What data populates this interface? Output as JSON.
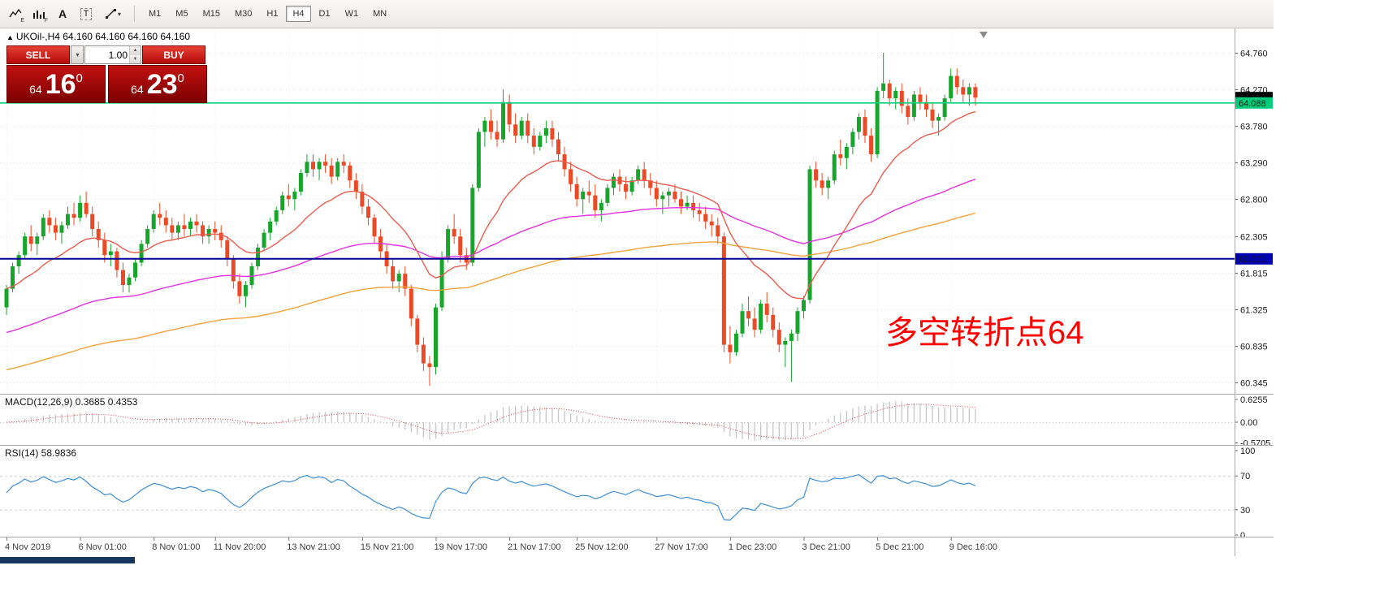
{
  "toolbar": {
    "tools": [
      {
        "name": "chart-style",
        "badge": "E"
      },
      {
        "name": "indicator-bars",
        "badge": "F"
      },
      {
        "name": "arrow-text",
        "label": "A"
      },
      {
        "name": "text-box",
        "label": "T"
      },
      {
        "name": "drawing-tools"
      }
    ],
    "timeframes": [
      {
        "label": "M1",
        "active": false
      },
      {
        "label": "M5",
        "active": false
      },
      {
        "label": "M15",
        "active": false
      },
      {
        "label": "M30",
        "active": false
      },
      {
        "label": "H1",
        "active": false
      },
      {
        "label": "H4",
        "active": true
      },
      {
        "label": "D1",
        "active": false
      },
      {
        "label": "W1",
        "active": false
      },
      {
        "label": "MN",
        "active": false
      }
    ]
  },
  "chart": {
    "symbol_label": "UKOil-,H4 64.160 64.160 64.160 64.160",
    "collapse_icon": "▲",
    "price_axis": [
      "64.760",
      "64.270",
      "63.780",
      "63.290",
      "62.800",
      "62.305",
      "61.815",
      "61.325",
      "60.835",
      "60.345"
    ],
    "price_lines": [
      {
        "label": "64.160",
        "price": 64.16,
        "badge_bg": "#000000",
        "badge_fg": "#FFFFFF"
      },
      {
        "label": "64.088",
        "price": 64.088,
        "badge_bg": "#00CC7A",
        "badge_fg": "#00331A",
        "line_color": "#00D07C",
        "line_width": 1.6
      },
      {
        "label": "62.000",
        "price": 62.0,
        "badge_bg": "#0000B0",
        "badge_fg": "#FFFFFF",
        "line_color": "#000096",
        "line_width": 2
      }
    ],
    "annotation": {
      "text": "多空转折点64",
      "color": "#FF0000"
    },
    "trade_panel": {
      "sell": "SELL",
      "buy": "BUY",
      "volume": "1.00",
      "bid": {
        "prefix": "64",
        "big": "16",
        "sup": "0"
      },
      "ask": {
        "prefix": "64",
        "big": "23",
        "sup": "0"
      }
    }
  },
  "macd_panel": {
    "label": "MACD(12,26,9) 0.3685 0.4353",
    "axis": [
      {
        "text": "0.6255",
        "value": 0.6255
      },
      {
        "text": "0.00",
        "value": 0
      },
      {
        "text": "-0.5705",
        "value": -0.5705
      }
    ]
  },
  "rsi_panel": {
    "label": "RSI(14) 58.9836",
    "axis": [
      {
        "text": "100",
        "value": 100
      },
      {
        "text": "70",
        "value": 70
      },
      {
        "text": "30",
        "value": 30
      },
      {
        "text": "0",
        "value": 0
      }
    ],
    "levels": [
      70,
      30
    ]
  },
  "chart_data": {
    "type": "candlestick",
    "symbol": "UKOil-",
    "timeframe": "H4",
    "ylim": [
      60.18,
      64.98
    ],
    "grid": true,
    "colors": {
      "up": "#18A52C",
      "down": "#EC4A26",
      "ma_fast": "#E95D4E",
      "ma_mid": "#E331E3",
      "ma_slow": "#F2A33C",
      "rsi": "#3E8FD6",
      "macd_hist": "#C6C6C6",
      "macd_signal": "#D94040"
    },
    "x_labels": [
      {
        "text": "4 Nov 2019",
        "i": 0
      },
      {
        "text": "6 Nov 01:00",
        "i": 12
      },
      {
        "text": "8 Nov 01:00",
        "i": 24
      },
      {
        "text": "11 Nov 20:00",
        "i": 34
      },
      {
        "text": "13 Nov 21:00",
        "i": 46
      },
      {
        "text": "15 Nov 21:00",
        "i": 58
      },
      {
        "text": "19 Nov 17:00",
        "i": 70
      },
      {
        "text": "21 Nov 17:00",
        "i": 82
      },
      {
        "text": "25 Nov 12:00",
        "i": 93
      },
      {
        "text": "27 Nov 17:00",
        "i": 106
      },
      {
        "text": "1 Dec 23:00",
        "i": 118
      },
      {
        "text": "3 Dec 21:00",
        "i": 130
      },
      {
        "text": "5 Dec 21:00",
        "i": 142
      },
      {
        "text": "9 Dec 16:00",
        "i": 154
      }
    ],
    "indicators": {
      "macd": {
        "fast": 12,
        "slow": 26,
        "signal": 9,
        "value": 0.3685,
        "signal_value": 0.4353
      },
      "rsi": {
        "period": 14,
        "value": 58.9836
      }
    },
    "ohlc": [
      [
        61.35,
        61.65,
        61.25,
        61.6
      ],
      [
        61.6,
        61.95,
        61.55,
        61.9
      ],
      [
        61.9,
        62.1,
        61.8,
        62.05
      ],
      [
        62.05,
        62.35,
        62.0,
        62.3
      ],
      [
        62.3,
        62.45,
        62.1,
        62.2
      ],
      [
        62.2,
        62.35,
        62.05,
        62.3
      ],
      [
        62.3,
        62.6,
        62.25,
        62.55
      ],
      [
        62.55,
        62.65,
        62.35,
        62.45
      ],
      [
        62.45,
        62.55,
        62.25,
        62.35
      ],
      [
        62.35,
        62.5,
        62.2,
        62.45
      ],
      [
        62.45,
        62.7,
        62.4,
        62.6
      ],
      [
        62.6,
        62.75,
        62.45,
        62.55
      ],
      [
        62.55,
        62.85,
        62.5,
        62.75
      ],
      [
        62.75,
        62.9,
        62.55,
        62.6
      ],
      [
        62.6,
        62.7,
        62.3,
        62.4
      ],
      [
        62.4,
        62.5,
        62.15,
        62.25
      ],
      [
        62.25,
        62.35,
        61.95,
        62.05
      ],
      [
        62.05,
        62.2,
        61.9,
        62.1
      ],
      [
        62.1,
        62.15,
        61.75,
        61.85
      ],
      [
        61.85,
        61.95,
        61.55,
        61.65
      ],
      [
        61.65,
        61.8,
        61.55,
        61.75
      ],
      [
        61.75,
        62.0,
        61.7,
        61.95
      ],
      [
        61.95,
        62.25,
        61.9,
        62.2
      ],
      [
        62.2,
        62.45,
        62.15,
        62.4
      ],
      [
        62.4,
        62.65,
        62.35,
        62.6
      ],
      [
        62.6,
        62.75,
        62.45,
        62.55
      ],
      [
        62.55,
        62.65,
        62.35,
        62.45
      ],
      [
        62.45,
        62.55,
        62.25,
        62.35
      ],
      [
        62.35,
        62.5,
        62.25,
        62.45
      ],
      [
        62.45,
        62.6,
        62.3,
        62.4
      ],
      [
        62.4,
        62.55,
        62.3,
        62.5
      ],
      [
        62.5,
        62.6,
        62.35,
        62.45
      ],
      [
        62.45,
        62.5,
        62.2,
        62.3
      ],
      [
        62.3,
        62.45,
        62.2,
        62.4
      ],
      [
        62.4,
        62.5,
        62.25,
        62.35
      ],
      [
        62.35,
        62.45,
        62.15,
        62.25
      ],
      [
        62.25,
        62.3,
        61.9,
        62.0
      ],
      [
        62.0,
        62.05,
        61.6,
        61.7
      ],
      [
        61.7,
        61.8,
        61.4,
        61.5
      ],
      [
        61.5,
        61.7,
        61.35,
        61.65
      ],
      [
        61.65,
        61.95,
        61.6,
        61.9
      ],
      [
        61.9,
        62.2,
        61.85,
        62.15
      ],
      [
        62.15,
        62.4,
        62.1,
        62.35
      ],
      [
        62.35,
        62.55,
        62.25,
        62.5
      ],
      [
        62.5,
        62.7,
        62.45,
        62.65
      ],
      [
        62.65,
        62.9,
        62.6,
        62.85
      ],
      [
        62.85,
        63.0,
        62.7,
        62.8
      ],
      [
        62.8,
        62.95,
        62.65,
        62.9
      ],
      [
        62.9,
        63.2,
        62.85,
        63.15
      ],
      [
        63.15,
        63.4,
        63.1,
        63.3
      ],
      [
        63.3,
        63.4,
        63.1,
        63.2
      ],
      [
        63.2,
        63.35,
        63.05,
        63.3
      ],
      [
        63.3,
        63.4,
        63.15,
        63.25
      ],
      [
        63.25,
        63.35,
        63.0,
        63.1
      ],
      [
        63.1,
        63.35,
        63.05,
        63.3
      ],
      [
        63.3,
        63.4,
        63.15,
        63.25
      ],
      [
        63.25,
        63.3,
        62.95,
        63.05
      ],
      [
        63.05,
        63.15,
        62.8,
        62.9
      ],
      [
        62.9,
        63.0,
        62.6,
        62.7
      ],
      [
        62.7,
        62.8,
        62.45,
        62.55
      ],
      [
        62.55,
        62.6,
        62.2,
        62.3
      ],
      [
        62.3,
        62.4,
        62.0,
        62.1
      ],
      [
        62.1,
        62.2,
        61.8,
        61.9
      ],
      [
        61.9,
        62.0,
        61.6,
        61.7
      ],
      [
        61.7,
        61.85,
        61.55,
        61.8
      ],
      [
        61.8,
        61.9,
        61.5,
        61.6
      ],
      [
        61.6,
        61.65,
        61.1,
        61.2
      ],
      [
        61.2,
        61.25,
        60.75,
        60.85
      ],
      [
        60.85,
        60.95,
        60.5,
        60.6
      ],
      [
        60.6,
        60.7,
        60.3,
        60.55
      ],
      [
        60.55,
        61.4,
        60.45,
        61.35
      ],
      [
        61.35,
        62.1,
        61.3,
        62.0
      ],
      [
        62.0,
        62.45,
        61.95,
        62.4
      ],
      [
        62.4,
        62.6,
        62.2,
        62.3
      ],
      [
        62.3,
        62.4,
        61.95,
        62.05
      ],
      [
        62.05,
        62.15,
        61.85,
        61.95
      ],
      [
        61.95,
        63.0,
        61.9,
        62.95
      ],
      [
        62.95,
        63.75,
        62.9,
        63.7
      ],
      [
        63.7,
        63.9,
        63.5,
        63.85
      ],
      [
        63.85,
        64.0,
        63.6,
        63.7
      ],
      [
        63.7,
        63.85,
        63.5,
        63.6
      ],
      [
        63.6,
        64.27,
        63.55,
        64.1
      ],
      [
        64.1,
        64.2,
        63.7,
        63.8
      ],
      [
        63.8,
        63.95,
        63.55,
        63.65
      ],
      [
        63.65,
        63.9,
        63.6,
        63.85
      ],
      [
        63.85,
        63.95,
        63.55,
        63.65
      ],
      [
        63.65,
        63.75,
        63.4,
        63.5
      ],
      [
        63.5,
        63.7,
        63.45,
        63.65
      ],
      [
        63.65,
        63.85,
        63.55,
        63.75
      ],
      [
        63.75,
        63.85,
        63.5,
        63.6
      ],
      [
        63.6,
        63.7,
        63.3,
        63.4
      ],
      [
        63.4,
        63.5,
        63.1,
        63.2
      ],
      [
        63.2,
        63.3,
        62.9,
        63.0
      ],
      [
        63.0,
        63.1,
        62.7,
        62.8
      ],
      [
        62.8,
        62.95,
        62.6,
        62.9
      ],
      [
        62.9,
        63.05,
        62.75,
        62.85
      ],
      [
        62.85,
        63.0,
        62.55,
        62.65
      ],
      [
        62.65,
        62.8,
        62.5,
        62.75
      ],
      [
        62.75,
        63.0,
        62.7,
        62.95
      ],
      [
        62.95,
        63.15,
        62.85,
        63.1
      ],
      [
        63.1,
        63.2,
        62.9,
        63.0
      ],
      [
        63.0,
        63.1,
        62.8,
        62.9
      ],
      [
        62.9,
        63.1,
        62.85,
        63.05
      ],
      [
        63.05,
        63.25,
        63.0,
        63.2
      ],
      [
        63.2,
        63.3,
        62.95,
        63.05
      ],
      [
        63.05,
        63.15,
        62.85,
        62.95
      ],
      [
        62.95,
        63.05,
        62.7,
        62.8
      ],
      [
        62.8,
        62.9,
        62.6,
        62.85
      ],
      [
        62.85,
        62.95,
        62.7,
        62.9
      ],
      [
        62.9,
        63.0,
        62.75,
        62.8
      ],
      [
        62.8,
        62.9,
        62.6,
        62.7
      ],
      [
        62.7,
        62.85,
        62.65,
        62.75
      ],
      [
        62.75,
        62.85,
        62.55,
        62.65
      ],
      [
        62.65,
        62.75,
        62.5,
        62.6
      ],
      [
        62.6,
        62.7,
        62.4,
        62.5
      ],
      [
        62.5,
        62.6,
        62.3,
        62.45
      ],
      [
        62.45,
        62.55,
        62.2,
        62.3
      ],
      [
        62.3,
        62.35,
        60.75,
        60.85
      ],
      [
        60.85,
        61.1,
        60.6,
        60.75
      ],
      [
        60.75,
        61.05,
        60.7,
        61.0
      ],
      [
        61.0,
        61.4,
        60.95,
        61.3
      ],
      [
        61.3,
        61.5,
        61.1,
        61.2
      ],
      [
        61.2,
        61.35,
        60.95,
        61.05
      ],
      [
        61.05,
        61.45,
        61.0,
        61.4
      ],
      [
        61.4,
        61.55,
        61.15,
        61.25
      ],
      [
        61.25,
        61.35,
        60.95,
        61.05
      ],
      [
        61.05,
        61.15,
        60.75,
        60.85
      ],
      [
        60.85,
        60.95,
        60.55,
        60.9
      ],
      [
        60.9,
        61.05,
        60.35,
        61.0
      ],
      [
        61.0,
        61.35,
        60.9,
        61.3
      ],
      [
        61.3,
        61.5,
        61.2,
        61.45
      ],
      [
        61.45,
        63.25,
        61.4,
        63.2
      ],
      [
        63.2,
        63.3,
        62.95,
        63.05
      ],
      [
        63.05,
        63.15,
        62.85,
        62.95
      ],
      [
        62.95,
        63.1,
        62.8,
        63.05
      ],
      [
        63.05,
        63.45,
        63.0,
        63.4
      ],
      [
        63.4,
        63.6,
        63.25,
        63.35
      ],
      [
        63.35,
        63.55,
        63.2,
        63.5
      ],
      [
        63.5,
        63.75,
        63.4,
        63.7
      ],
      [
        63.7,
        63.95,
        63.6,
        63.9
      ],
      [
        63.9,
        64.0,
        63.55,
        63.65
      ],
      [
        63.65,
        63.75,
        63.3,
        63.4
      ],
      [
        63.4,
        64.3,
        63.35,
        64.25
      ],
      [
        64.25,
        64.76,
        64.15,
        64.35
      ],
      [
        64.35,
        64.4,
        64.05,
        64.15
      ],
      [
        64.15,
        64.3,
        64.0,
        64.25
      ],
      [
        64.25,
        64.35,
        63.95,
        64.05
      ],
      [
        64.05,
        64.15,
        63.8,
        63.9
      ],
      [
        63.9,
        64.25,
        63.85,
        64.2
      ],
      [
        64.2,
        64.3,
        64.0,
        64.1
      ],
      [
        64.1,
        64.2,
        63.9,
        64.0
      ],
      [
        64.0,
        64.1,
        63.75,
        63.85
      ],
      [
        63.85,
        63.95,
        63.65,
        63.9
      ],
      [
        63.9,
        64.2,
        63.85,
        64.15
      ],
      [
        64.15,
        64.55,
        64.1,
        64.45
      ],
      [
        64.45,
        64.55,
        64.2,
        64.3
      ],
      [
        64.3,
        64.4,
        64.1,
        64.2
      ],
      [
        64.2,
        64.35,
        64.05,
        64.3
      ],
      [
        64.3,
        64.35,
        64.05,
        64.16
      ]
    ]
  }
}
